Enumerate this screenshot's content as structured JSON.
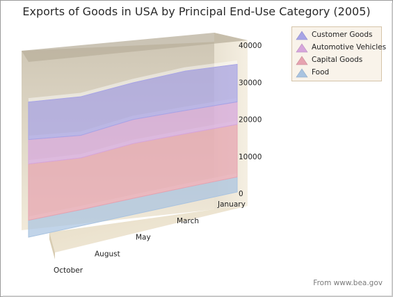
{
  "title": "Exports of Goods in USA by Principal  End-Use Category (2005)",
  "source": "From www.bea.gov",
  "chart_data": {
    "type": "area",
    "stacked": true,
    "categories": [
      "January",
      "March",
      "May",
      "August",
      "October"
    ],
    "x_tick_labels": [
      "January",
      "March",
      "May",
      "August",
      "October"
    ],
    "y_tick_labels": [
      "0",
      "10000",
      "20000",
      "30000",
      "40000"
    ],
    "ylim": [
      0,
      45000
    ],
    "legend": "top-right",
    "grid": false,
    "series": [
      {
        "name": "Food",
        "color": "#a9c3e0",
        "values": [
          4000,
          4200,
          4300,
          4300,
          4500
        ]
      },
      {
        "name": "Capital Goods",
        "color": "#e6a3b0",
        "values": [
          14000,
          14300,
          14600,
          13800,
          15000
        ]
      },
      {
        "name": "Automotive Vehicles",
        "color": "#d6a6dc",
        "values": [
          6000,
          6200,
          6400,
          6000,
          6500
        ]
      },
      {
        "name": "Customer Goods",
        "color": "#a7a4e6",
        "values": [
          10000,
          10500,
          9800,
          10300,
          10000
        ]
      }
    ]
  },
  "legend_items": [
    {
      "label": "Customer Goods",
      "color": "#a7a4e6"
    },
    {
      "label": "Automotive Vehicles",
      "color": "#d6a6dc"
    },
    {
      "label": "Capital Goods",
      "color": "#e6a3b0"
    },
    {
      "label": "Food",
      "color": "#a9c3e0"
    }
  ]
}
